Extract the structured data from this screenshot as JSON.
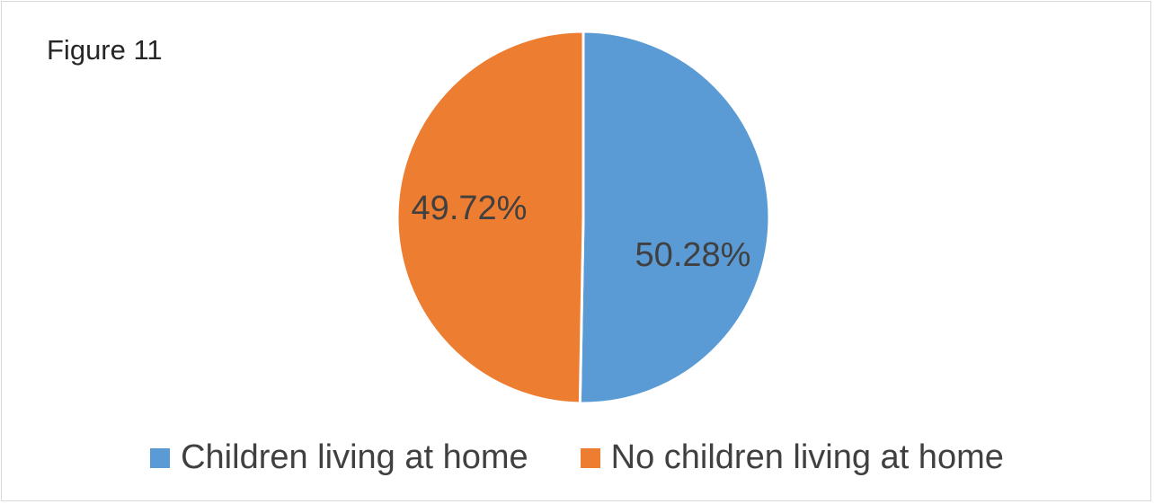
{
  "figure": {
    "title": "Figure 11"
  },
  "chart_data": {
    "type": "pie",
    "title": "",
    "categories": [
      "Children living at home",
      "No children living at home"
    ],
    "values": [
      50.28,
      49.72
    ],
    "labels": [
      "50.28%",
      "49.72%"
    ],
    "colors": [
      "#5B9BD5",
      "#ED7D31"
    ],
    "start_angle_deg": 0,
    "direction": "clockwise",
    "legend_position": "bottom"
  }
}
